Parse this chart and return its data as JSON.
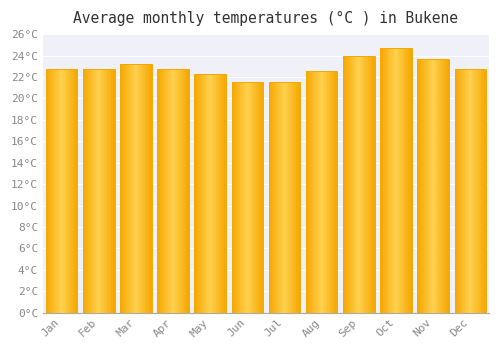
{
  "title": "Average monthly temperatures (°C ) in Bukene",
  "months": [
    "Jan",
    "Feb",
    "Mar",
    "Apr",
    "May",
    "Jun",
    "Jul",
    "Aug",
    "Sep",
    "Oct",
    "Nov",
    "Dec"
  ],
  "values": [
    22.8,
    22.8,
    23.2,
    22.8,
    22.3,
    21.5,
    21.5,
    22.6,
    24.0,
    24.7,
    23.7,
    22.8
  ],
  "bar_color_left": "#F5A800",
  "bar_color_center": "#FFD050",
  "bar_color_right": "#F5A800",
  "ylim": [
    0,
    26
  ],
  "ytick_step": 2,
  "background_color": "#FFFFFF",
  "plot_bg_color": "#F0F0F8",
  "grid_color": "#FFFFFF",
  "title_fontsize": 10.5,
  "tick_fontsize": 8,
  "font_family": "monospace",
  "bar_width": 0.85
}
